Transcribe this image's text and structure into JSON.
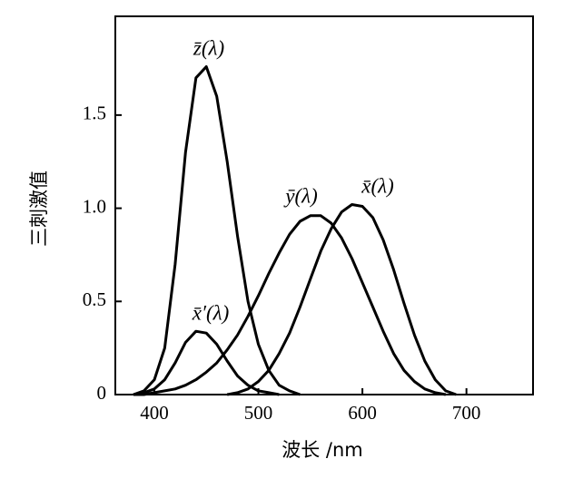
{
  "chart_data": {
    "type": "line",
    "x_label": "波长 /nm",
    "y_label": "三刺激值",
    "x": [
      380,
      390,
      400,
      410,
      420,
      430,
      440,
      450,
      460,
      470,
      480,
      490,
      500,
      510,
      520,
      530,
      540,
      550,
      560,
      570,
      580,
      590,
      600,
      610,
      620,
      630,
      640,
      650,
      660,
      670,
      680,
      690,
      700
    ],
    "series": [
      {
        "name": "z̄(λ)",
        "color": "#000000",
        "values": [
          0,
          0.02,
          0.08,
          0.25,
          0.7,
          1.3,
          1.7,
          1.76,
          1.6,
          1.25,
          0.85,
          0.5,
          0.27,
          0.13,
          0.05,
          0.02,
          0,
          null,
          null,
          null,
          null,
          null,
          null,
          null,
          null,
          null,
          null,
          null,
          null,
          null,
          null,
          null,
          null
        ]
      },
      {
        "name": "x̄′(λ)",
        "color": "#000000",
        "values": [
          0,
          0.01,
          0.03,
          0.08,
          0.17,
          0.28,
          0.34,
          0.33,
          0.27,
          0.18,
          0.1,
          0.05,
          0.02,
          0.01,
          0,
          null,
          null,
          null,
          null,
          null,
          null,
          null,
          null,
          null,
          null,
          null,
          null,
          null,
          null,
          null,
          null,
          null,
          null
        ]
      },
      {
        "name": "ȳ(λ)",
        "color": "#000000",
        "values": [
          0,
          0,
          0.01,
          0.02,
          0.03,
          0.05,
          0.08,
          0.12,
          0.17,
          0.24,
          0.32,
          0.42,
          0.53,
          0.65,
          0.76,
          0.86,
          0.93,
          0.96,
          0.96,
          0.92,
          0.84,
          0.73,
          0.6,
          0.47,
          0.34,
          0.22,
          0.13,
          0.07,
          0.03,
          0.01,
          0,
          null,
          null
        ]
      },
      {
        "name": "x̄(λ)",
        "color": "#000000",
        "values": [
          null,
          null,
          null,
          null,
          null,
          null,
          null,
          null,
          null,
          0,
          0.01,
          0.03,
          0.07,
          0.13,
          0.22,
          0.33,
          0.47,
          0.62,
          0.77,
          0.89,
          0.98,
          1.02,
          1.01,
          0.95,
          0.83,
          0.67,
          0.49,
          0.32,
          0.18,
          0.08,
          0.02,
          0,
          null
        ]
      }
    ],
    "xlim": [
      362.5,
      764
    ],
    "ylim": [
      0,
      2.03
    ],
    "xticks": [
      400,
      500,
      600,
      700
    ],
    "yticks": [
      0,
      0.5,
      {
        "value": 1,
        "label": "1.0"
      },
      1.5
    ]
  }
}
